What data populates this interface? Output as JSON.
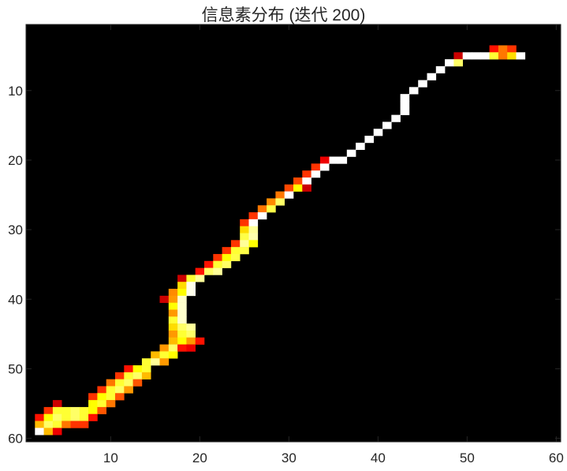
{
  "chart_data": {
    "type": "heatmap",
    "title": "信息素分布 (迭代 200)",
    "colormap": "hot",
    "background_color": "#000000",
    "xlim": [
      0.5,
      60.5
    ],
    "ylim": [
      0.5,
      60.5
    ],
    "y_reversed": true,
    "x_ticks": [
      10,
      20,
      30,
      40,
      50,
      60
    ],
    "y_ticks": [
      10,
      20,
      30,
      40,
      50,
      60
    ],
    "value_range": [
      0,
      1
    ],
    "cells": [
      [
        53,
        4,
        0.4
      ],
      [
        54,
        4,
        0.55
      ],
      [
        55,
        4,
        0.45
      ],
      [
        49,
        5,
        0.3
      ],
      [
        50,
        5,
        1
      ],
      [
        51,
        5,
        1
      ],
      [
        52,
        5,
        1
      ],
      [
        53,
        5,
        0.8
      ],
      [
        54,
        5,
        0.55
      ],
      [
        55,
        5,
        0.7
      ],
      [
        56,
        5,
        1
      ],
      [
        48,
        6,
        1
      ],
      [
        49,
        6,
        0.85
      ],
      [
        47,
        7,
        1
      ],
      [
        46,
        8,
        1
      ],
      [
        45,
        9,
        1
      ],
      [
        44,
        10,
        1
      ],
      [
        43,
        11,
        1
      ],
      [
        43,
        12,
        1
      ],
      [
        43,
        13,
        1
      ],
      [
        42,
        14,
        1
      ],
      [
        41,
        15,
        1
      ],
      [
        40,
        16,
        1
      ],
      [
        39,
        17,
        1
      ],
      [
        38,
        18,
        1
      ],
      [
        37,
        19,
        1
      ],
      [
        35,
        20,
        1
      ],
      [
        36,
        20,
        1
      ],
      [
        34,
        20,
        0.35
      ],
      [
        33,
        21,
        0.45
      ],
      [
        34,
        21,
        1
      ],
      [
        32,
        22,
        0.45
      ],
      [
        33,
        22,
        1
      ],
      [
        31,
        23,
        0.48
      ],
      [
        32,
        23,
        1
      ],
      [
        30,
        24,
        0.48
      ],
      [
        31,
        24,
        0.75
      ],
      [
        32,
        24,
        0.3
      ],
      [
        29,
        25,
        0.55
      ],
      [
        30,
        25,
        1
      ],
      [
        28,
        26,
        0.58
      ],
      [
        29,
        26,
        0.85
      ],
      [
        27,
        27,
        0.55
      ],
      [
        28,
        27,
        0.82
      ],
      [
        26,
        28,
        0.45
      ],
      [
        27,
        28,
        1
      ],
      [
        25,
        29,
        0.45
      ],
      [
        26,
        29,
        1
      ],
      [
        25,
        30,
        0.7
      ],
      [
        26,
        30,
        0.9
      ],
      [
        25,
        31,
        0.82
      ],
      [
        26,
        31,
        0.92
      ],
      [
        24,
        32,
        0.45
      ],
      [
        25,
        32,
        0.9
      ],
      [
        26,
        32,
        0.75
      ],
      [
        23,
        33,
        0.45
      ],
      [
        24,
        33,
        0.8
      ],
      [
        25,
        33,
        0.82
      ],
      [
        22,
        34,
        0.45
      ],
      [
        23,
        34,
        0.75
      ],
      [
        24,
        34,
        0.82
      ],
      [
        21,
        35,
        0.4
      ],
      [
        22,
        35,
        0.8
      ],
      [
        23,
        35,
        0.85
      ],
      [
        20,
        36,
        0.4
      ],
      [
        21,
        36,
        0.85
      ],
      [
        22,
        36,
        0.9
      ],
      [
        18,
        37,
        0.3
      ],
      [
        19,
        37,
        0.8
      ],
      [
        20,
        37,
        0.9
      ],
      [
        18,
        38,
        0.7
      ],
      [
        19,
        38,
        0.98
      ],
      [
        17,
        39,
        0.58
      ],
      [
        18,
        39,
        0.75
      ],
      [
        19,
        39,
        0.98
      ],
      [
        16,
        40,
        0.3
      ],
      [
        17,
        40,
        0.6
      ],
      [
        18,
        40,
        0.95
      ],
      [
        17,
        41,
        0.75
      ],
      [
        18,
        41,
        0.95
      ],
      [
        17,
        42,
        0.6
      ],
      [
        18,
        42,
        0.95
      ],
      [
        17,
        43,
        0.8
      ],
      [
        18,
        43,
        0.95
      ],
      [
        17,
        44,
        0.7
      ],
      [
        18,
        44,
        0.85
      ],
      [
        19,
        44,
        0.9
      ],
      [
        17,
        45,
        0.6
      ],
      [
        18,
        45,
        0.8
      ],
      [
        19,
        45,
        0.85
      ],
      [
        17,
        46,
        0.65
      ],
      [
        18,
        46,
        0.75
      ],
      [
        19,
        46,
        0.6
      ],
      [
        20,
        46,
        0.4
      ],
      [
        16,
        47,
        0.6
      ],
      [
        17,
        47,
        0.85
      ],
      [
        18,
        47,
        0.4
      ],
      [
        19,
        47,
        0.35
      ],
      [
        15,
        48,
        0.65
      ],
      [
        16,
        48,
        0.8
      ],
      [
        17,
        48,
        0.75
      ],
      [
        14,
        49,
        0.8
      ],
      [
        15,
        49,
        0.9
      ],
      [
        16,
        49,
        0.6
      ],
      [
        12,
        50,
        0.4
      ],
      [
        13,
        50,
        0.75
      ],
      [
        14,
        50,
        0.8
      ],
      [
        11,
        51,
        0.45
      ],
      [
        12,
        51,
        0.8
      ],
      [
        13,
        51,
        0.85
      ],
      [
        14,
        51,
        0.65
      ],
      [
        10,
        52,
        0.55
      ],
      [
        11,
        52,
        0.8
      ],
      [
        12,
        52,
        0.85
      ],
      [
        13,
        52,
        0.5
      ],
      [
        9,
        53,
        0.45
      ],
      [
        10,
        53,
        0.8
      ],
      [
        11,
        53,
        0.85
      ],
      [
        12,
        53,
        0.6
      ],
      [
        8,
        54,
        0.45
      ],
      [
        9,
        54,
        0.75
      ],
      [
        10,
        54,
        0.8
      ],
      [
        11,
        54,
        0.5
      ],
      [
        8,
        55,
        0.75
      ],
      [
        9,
        55,
        0.8
      ],
      [
        10,
        55,
        0.55
      ],
      [
        4,
        55,
        0.3
      ],
      [
        3,
        56,
        0.45
      ],
      [
        4,
        56,
        0.8
      ],
      [
        5,
        56,
        0.8
      ],
      [
        6,
        56,
        0.85
      ],
      [
        7,
        56,
        0.8
      ],
      [
        8,
        56,
        0.75
      ],
      [
        9,
        56,
        0.5
      ],
      [
        2,
        57,
        0.4
      ],
      [
        3,
        57,
        0.75
      ],
      [
        4,
        57,
        0.85
      ],
      [
        5,
        57,
        0.8
      ],
      [
        6,
        57,
        0.85
      ],
      [
        7,
        57,
        0.8
      ],
      [
        8,
        57,
        0.4
      ],
      [
        2,
        58,
        0.65
      ],
      [
        3,
        58,
        0.85
      ],
      [
        4,
        58,
        0.8
      ],
      [
        5,
        58,
        0.55
      ],
      [
        6,
        58,
        0.45
      ],
      [
        7,
        58,
        0.45
      ],
      [
        2,
        59,
        1
      ],
      [
        3,
        59,
        0.65
      ],
      [
        4,
        59,
        0.35
      ]
    ]
  }
}
